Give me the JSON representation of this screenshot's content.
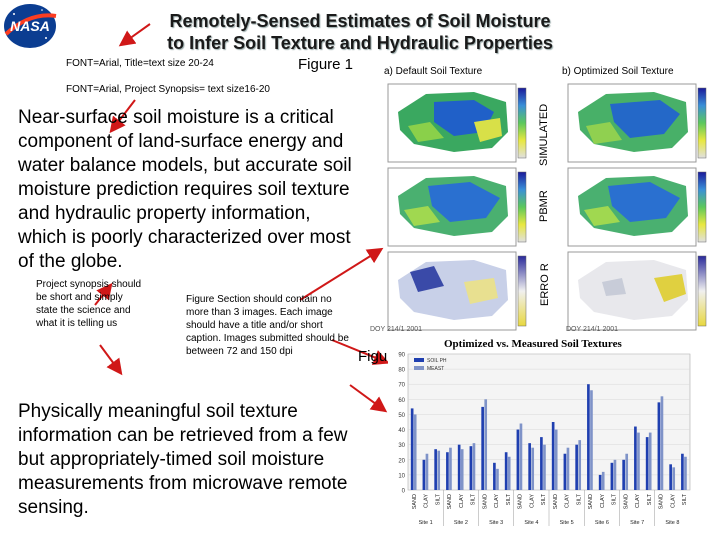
{
  "header": {
    "title_line1": "Remotely-Sensed Estimates of Soil Moisture",
    "title_line2": "to Infer Soil Texture and Hydraulic Properties",
    "font_note_title": "FONT=Arial, Title=text size 20-24",
    "font_note_synopsis": "FONT=Arial, Project Synopsis= text size16-20",
    "logo_text": "NASA"
  },
  "figure1": {
    "label": "Figure 1",
    "col_a": "a) Default Soil Texture",
    "col_b": "b) Optimized Soil Texture",
    "rows": [
      "SIMULATED",
      "PBMR",
      "ERRO R"
    ],
    "caption_a": "DOY 214/1 2001",
    "caption_b": "DOY 214/1 2001"
  },
  "synopsis": {
    "main": "Near-surface soil moisture is a critical component of land-surface energy and water balance models, but accurate soil moisture prediction requires soil texture and hydraulic property information, which is poorly characterized over most of the globe.",
    "note_left": "Project synopsis should be short and simply state the science and what it is telling us",
    "note_figure": "Figure Section should contain no more than 3 images. Each image should have a title and/or short caption. Images submitted should be between 72 and 150 dpi",
    "secondary": "Physically meaningful soil texture information can be retrieved from a few but appropriately-timed soil moisture measurements from microwave remote sensing."
  },
  "figure2": {
    "label": "Figure 2",
    "chart_data": {
      "type": "bar",
      "title": "Optimized vs. Measured Soil Textures",
      "legend": [
        "SOIL PH",
        "MEAST"
      ],
      "legend_placement": "top-left",
      "categories": [
        "SAND",
        "CLAY",
        "SILT",
        "SAND",
        "CLAY",
        "SILT",
        "SAND",
        "CLAY",
        "SILT",
        "SAND",
        "CLAY",
        "SILT",
        "SAND",
        "CLAY",
        "SILT",
        "SAND",
        "CLAY",
        "SILT",
        "SAND",
        "CLAY",
        "SILT",
        "SAND",
        "CLAY",
        "SILT"
      ],
      "groups": [
        "Site 1",
        "Site 2",
        "Site 3",
        "Site 4",
        "Site 5",
        "Site 6",
        "Site 7",
        "Site 8"
      ],
      "ylim": [
        0,
        90
      ],
      "yticks": [
        0,
        10,
        20,
        30,
        40,
        50,
        60,
        70,
        80,
        90
      ],
      "series": [
        {
          "name": "SOIL PH",
          "values": [
            54,
            20,
            27,
            25,
            30,
            29,
            55,
            18,
            25,
            40,
            31,
            35,
            45,
            24,
            30,
            70,
            10,
            18,
            20,
            42,
            35,
            58,
            17,
            24
          ]
        },
        {
          "name": "MEAST",
          "values": [
            50,
            24,
            26,
            28,
            27,
            31,
            60,
            14,
            22,
            44,
            28,
            30,
            40,
            28,
            33,
            66,
            12,
            20,
            24,
            38,
            38,
            62,
            15,
            22
          ]
        }
      ]
    }
  },
  "colors": {
    "arrow": "#d01818",
    "bar_series1": "#1f3fb0",
    "bar_series2": "#7f93c8",
    "nasa_blue": "#0b3d91",
    "nasa_red": "#fc3d21"
  }
}
